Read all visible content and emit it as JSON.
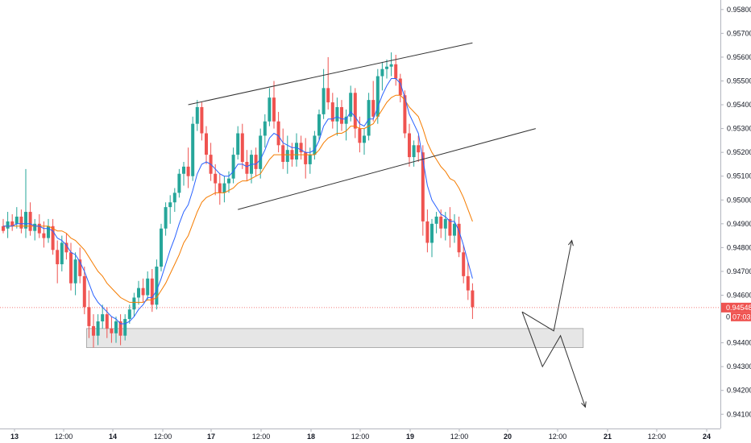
{
  "chart_data": {
    "type": "candlestick",
    "ylim": [
      0.9404,
      0.9584
    ],
    "x_ticks": [
      "13",
      "12:00",
      "14",
      "12:00",
      "17",
      "12:00",
      "18",
      "12:00",
      "19",
      "12:00",
      "20",
      "12:00",
      "21",
      "12:00",
      "24"
    ],
    "x_ticks_bold": [
      "13",
      "14",
      "17",
      "18",
      "19",
      "20",
      "21",
      "24"
    ],
    "y_ticks": [
      "0.95800",
      "0.95700",
      "0.95600",
      "0.95500",
      "0.95400",
      "0.95300",
      "0.95200",
      "0.95100",
      "0.95000",
      "0.94900",
      "0.94800",
      "0.94700",
      "0.94600",
      "0.94400",
      "0.94300",
      "0.94200",
      "0.94100"
    ],
    "y_tick_values": [
      0.958,
      0.957,
      0.956,
      0.955,
      0.954,
      0.953,
      0.952,
      0.951,
      0.95,
      0.949,
      0.948,
      0.947,
      0.946,
      0.944,
      0.943,
      0.942,
      0.941
    ],
    "last_price_label": "0.94548",
    "last_price": 0.94548,
    "countdown_label": "07:03",
    "countdown_prefix": "0",
    "colors": {
      "up": "#26a69a",
      "down": "#ef5350",
      "ma_fast": "#2962ff",
      "ma_slow": "#f57c00",
      "price_line": "#ef5350",
      "zone_fill": "#e6e6e6",
      "zone_border": "#9e9e9e",
      "trendline": "#333333"
    },
    "candles": [
      [
        0.9489,
        0.9492,
        0.9486,
        0.9487
      ],
      [
        0.9488,
        0.9495,
        0.9484,
        0.9491
      ],
      [
        0.9491,
        0.9494,
        0.9487,
        0.9489
      ],
      [
        0.949,
        0.9497,
        0.9488,
        0.9493
      ],
      [
        0.9493,
        0.9496,
        0.9486,
        0.9488
      ],
      [
        0.9488,
        0.9513,
        0.9484,
        0.9495
      ],
      [
        0.9495,
        0.9499,
        0.9485,
        0.9487
      ],
      [
        0.9487,
        0.9492,
        0.9483,
        0.949
      ],
      [
        0.949,
        0.9494,
        0.9484,
        0.9486
      ],
      [
        0.9486,
        0.9491,
        0.948,
        0.9484
      ],
      [
        0.9484,
        0.9492,
        0.9482,
        0.9489
      ],
      [
        0.9489,
        0.9492,
        0.9477,
        0.9479
      ],
      [
        0.9479,
        0.9483,
        0.9465,
        0.9473
      ],
      [
        0.9473,
        0.9485,
        0.947,
        0.9482
      ],
      [
        0.9482,
        0.9486,
        0.9475,
        0.9478
      ],
      [
        0.9478,
        0.9482,
        0.9462,
        0.9465
      ],
      [
        0.9465,
        0.9478,
        0.946,
        0.9475
      ],
      [
        0.9475,
        0.948,
        0.9465,
        0.9468
      ],
      [
        0.9468,
        0.9472,
        0.9452,
        0.9455
      ],
      [
        0.9455,
        0.9462,
        0.9442,
        0.9447
      ],
      [
        0.9447,
        0.9452,
        0.9438,
        0.9443
      ],
      [
        0.9443,
        0.9452,
        0.9439,
        0.9449
      ],
      [
        0.9449,
        0.9456,
        0.9446,
        0.9452
      ],
      [
        0.9452,
        0.9455,
        0.9442,
        0.9446
      ],
      [
        0.9446,
        0.9451,
        0.944,
        0.9444
      ],
      [
        0.9444,
        0.9451,
        0.944,
        0.9449
      ],
      [
        0.9449,
        0.9452,
        0.9439,
        0.9443
      ],
      [
        0.9443,
        0.9452,
        0.9441,
        0.945
      ],
      [
        0.945,
        0.9456,
        0.9448,
        0.9454
      ],
      [
        0.9454,
        0.9461,
        0.9451,
        0.9459
      ],
      [
        0.9459,
        0.9466,
        0.9456,
        0.9463
      ],
      [
        0.9463,
        0.9467,
        0.9457,
        0.946
      ],
      [
        0.946,
        0.947,
        0.9458,
        0.9467
      ],
      [
        0.9467,
        0.9471,
        0.9453,
        0.9456
      ],
      [
        0.9456,
        0.9475,
        0.9454,
        0.9472
      ],
      [
        0.9472,
        0.949,
        0.947,
        0.9488
      ],
      [
        0.9488,
        0.9499,
        0.9485,
        0.9497
      ],
      [
        0.9497,
        0.9502,
        0.949,
        0.9499
      ],
      [
        0.9499,
        0.9505,
        0.9495,
        0.9503
      ],
      [
        0.9503,
        0.9513,
        0.9501,
        0.9511
      ],
      [
        0.9511,
        0.9516,
        0.9506,
        0.9514
      ],
      [
        0.9514,
        0.9522,
        0.9505,
        0.951
      ],
      [
        0.951,
        0.9535,
        0.9508,
        0.9532
      ],
      [
        0.9532,
        0.9542,
        0.9529,
        0.9539
      ],
      [
        0.9539,
        0.9541,
        0.9525,
        0.9528
      ],
      [
        0.9528,
        0.9531,
        0.9515,
        0.9519
      ],
      [
        0.9519,
        0.9524,
        0.9508,
        0.9511
      ],
      [
        0.9511,
        0.9515,
        0.9502,
        0.9507
      ],
      [
        0.9507,
        0.9511,
        0.9498,
        0.9503
      ],
      [
        0.9503,
        0.951,
        0.9499,
        0.9507
      ],
      [
        0.9507,
        0.9512,
        0.9503,
        0.9509
      ],
      [
        0.9509,
        0.9522,
        0.9507,
        0.9519
      ],
      [
        0.9519,
        0.9531,
        0.9517,
        0.9528
      ],
      [
        0.9528,
        0.9532,
        0.9513,
        0.9516
      ],
      [
        0.9516,
        0.9521,
        0.9508,
        0.9511
      ],
      [
        0.9511,
        0.9521,
        0.9507,
        0.9519
      ],
      [
        0.9519,
        0.9522,
        0.951,
        0.9513
      ],
      [
        0.9513,
        0.953,
        0.9509,
        0.9527
      ],
      [
        0.9527,
        0.9536,
        0.9522,
        0.9533
      ],
      [
        0.9533,
        0.9547,
        0.9531,
        0.9543
      ],
      [
        0.9543,
        0.955,
        0.953,
        0.9533
      ],
      [
        0.9533,
        0.9537,
        0.952,
        0.9523
      ],
      [
        0.9523,
        0.953,
        0.9513,
        0.9516
      ],
      [
        0.9516,
        0.9527,
        0.9511,
        0.9521
      ],
      [
        0.9521,
        0.9524,
        0.9514,
        0.9517
      ],
      [
        0.9517,
        0.9528,
        0.9514,
        0.9524
      ],
      [
        0.9524,
        0.9527,
        0.9517,
        0.952
      ],
      [
        0.952,
        0.9526,
        0.9509,
        0.9515
      ],
      [
        0.9515,
        0.9522,
        0.9511,
        0.9519
      ],
      [
        0.9519,
        0.9529,
        0.9517,
        0.9527
      ],
      [
        0.9527,
        0.9538,
        0.9525,
        0.9536
      ],
      [
        0.9536,
        0.9555,
        0.9534,
        0.9547
      ],
      [
        0.9547,
        0.956,
        0.9538,
        0.9541
      ],
      [
        0.9541,
        0.9545,
        0.953,
        0.9533
      ],
      [
        0.9533,
        0.9543,
        0.9527,
        0.9539
      ],
      [
        0.9539,
        0.9542,
        0.9529,
        0.9532
      ],
      [
        0.9532,
        0.9538,
        0.9525,
        0.9535
      ],
      [
        0.9535,
        0.9548,
        0.9533,
        0.9545
      ],
      [
        0.9545,
        0.9547,
        0.9526,
        0.953
      ],
      [
        0.953,
        0.9535,
        0.952,
        0.9524
      ],
      [
        0.9524,
        0.953,
        0.9519,
        0.9527
      ],
      [
        0.9527,
        0.9545,
        0.9525,
        0.9542
      ],
      [
        0.9542,
        0.955,
        0.9533,
        0.9535
      ],
      [
        0.9535,
        0.9555,
        0.9532,
        0.9552
      ],
      [
        0.9552,
        0.9558,
        0.9546,
        0.9555
      ],
      [
        0.9555,
        0.9559,
        0.9551,
        0.9556
      ],
      [
        0.9556,
        0.9562,
        0.9552,
        0.9557
      ],
      [
        0.9557,
        0.9561,
        0.9548,
        0.9551
      ],
      [
        0.9551,
        0.9553,
        0.9541,
        0.9544
      ],
      [
        0.9544,
        0.9546,
        0.9526,
        0.9528
      ],
      [
        0.9528,
        0.9532,
        0.9514,
        0.9518
      ],
      [
        0.9518,
        0.9525,
        0.9514,
        0.9523
      ],
      [
        0.9523,
        0.9527,
        0.9516,
        0.952
      ],
      [
        0.952,
        0.9523,
        0.9485,
        0.9491
      ],
      [
        0.9491,
        0.9496,
        0.9478,
        0.9482
      ],
      [
        0.9482,
        0.9492,
        0.9476,
        0.949
      ],
      [
        0.949,
        0.9495,
        0.9486,
        0.9493
      ],
      [
        0.9493,
        0.9496,
        0.9484,
        0.9488
      ],
      [
        0.9488,
        0.9495,
        0.9483,
        0.9492
      ],
      [
        0.9492,
        0.9497,
        0.948,
        0.9485
      ],
      [
        0.9485,
        0.9494,
        0.9482,
        0.949
      ],
      [
        0.949,
        0.9493,
        0.9476,
        0.9478
      ],
      [
        0.9478,
        0.9481,
        0.9465,
        0.9468
      ],
      [
        0.9468,
        0.9474,
        0.9458,
        0.9462
      ],
      [
        0.9462,
        0.9465,
        0.945,
        0.9455
      ]
    ],
    "ma_fast": [
      0.9489,
      0.9489,
      0.9489,
      0.949,
      0.949,
      0.949,
      0.949,
      0.9489,
      0.9489,
      0.9488,
      0.9488,
      0.9487,
      0.9484,
      0.9483,
      0.9481,
      0.9478,
      0.9477,
      0.9474,
      0.947,
      0.9465,
      0.946,
      0.9457,
      0.9455,
      0.9453,
      0.9451,
      0.945,
      0.9448,
      0.9448,
      0.9449,
      0.9451,
      0.9454,
      0.9456,
      0.9459,
      0.9459,
      0.9462,
      0.9467,
      0.9473,
      0.9479,
      0.9484,
      0.949,
      0.9495,
      0.9498,
      0.9504,
      0.9511,
      0.9515,
      0.9516,
      0.9515,
      0.9513,
      0.9511,
      0.951,
      0.951,
      0.9512,
      0.9515,
      0.9515,
      0.9514,
      0.9515,
      0.9515,
      0.9517,
      0.9521,
      0.9526,
      0.9528,
      0.9527,
      0.9524,
      0.9523,
      0.9522,
      0.9522,
      0.9521,
      0.952,
      0.952,
      0.9521,
      0.9525,
      0.9531,
      0.9534,
      0.9534,
      0.9535,
      0.9534,
      0.9534,
      0.9537,
      0.9535,
      0.9532,
      0.9531,
      0.9534,
      0.9534,
      0.9539,
      0.9544,
      0.9548,
      0.9551,
      0.9551,
      0.9549,
      0.9543,
      0.9536,
      0.9532,
      0.9528,
      0.9517,
      0.9506,
      0.95,
      0.9497,
      0.9494,
      0.9493,
      0.9491,
      0.9491,
      0.9487,
      0.9481,
      0.9474,
      0.9467
    ],
    "ma_slow": [
      0.9489,
      0.9489,
      0.9489,
      0.9489,
      0.9489,
      0.9489,
      0.9489,
      0.9489,
      0.9489,
      0.9489,
      0.9489,
      0.9488,
      0.9487,
      0.9487,
      0.9486,
      0.9484,
      0.9483,
      0.9481,
      0.9479,
      0.9476,
      0.9473,
      0.947,
      0.9468,
      0.9465,
      0.9463,
      0.9461,
      0.9459,
      0.9458,
      0.9457,
      0.9457,
      0.9457,
      0.9457,
      0.9458,
      0.9458,
      0.9459,
      0.9462,
      0.9465,
      0.9469,
      0.9473,
      0.9477,
      0.9482,
      0.9485,
      0.949,
      0.9495,
      0.9499,
      0.9501,
      0.9502,
      0.9503,
      0.9503,
      0.9503,
      0.9504,
      0.9505,
      0.9507,
      0.9508,
      0.9508,
      0.9509,
      0.951,
      0.9511,
      0.9514,
      0.9517,
      0.9519,
      0.9519,
      0.9519,
      0.9519,
      0.9519,
      0.9519,
      0.9519,
      0.9519,
      0.9519,
      0.9519,
      0.9521,
      0.9524,
      0.9526,
      0.9527,
      0.9528,
      0.9528,
      0.9529,
      0.9531,
      0.9531,
      0.953,
      0.953,
      0.9531,
      0.9532,
      0.9535,
      0.9538,
      0.9541,
      0.9543,
      0.9544,
      0.9544,
      0.9542,
      0.9539,
      0.9537,
      0.9535,
      0.953,
      0.9524,
      0.952,
      0.9517,
      0.9514,
      0.9512,
      0.9509,
      0.9508,
      0.9505,
      0.9501,
      0.9496,
      0.9491
    ],
    "zone": {
      "x_from": 19,
      "x_to": 128,
      "y_top": 0.9446,
      "y_bottom": 0.9438
    },
    "upper_trendline": [
      [
        41,
        0.954
      ],
      [
        104,
        0.9566
      ]
    ],
    "lower_trendline": [
      [
        52,
        0.9496
      ],
      [
        118,
        0.953
      ]
    ],
    "projection_up": [
      [
        115,
        0.9453
      ],
      [
        122,
        0.9445
      ],
      [
        126,
        0.9483
      ]
    ],
    "projection_down": [
      [
        115,
        0.9453
      ],
      [
        119.5,
        0.943
      ],
      [
        123.5,
        0.9443
      ],
      [
        129,
        0.9413
      ]
    ]
  }
}
